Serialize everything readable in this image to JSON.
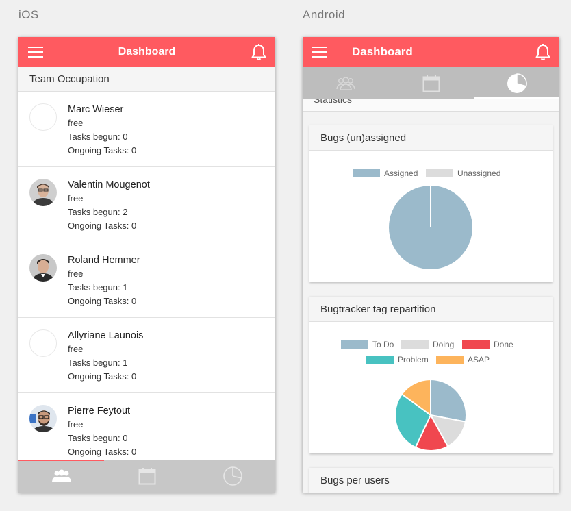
{
  "labels": {
    "ios": "iOS",
    "android": "Android"
  },
  "ios": {
    "appbar": {
      "title": "Dashboard"
    },
    "section_title": "Team Occupation",
    "members": [
      {
        "name": "Marc Wieser",
        "status": "free",
        "tasks_begun": "Tasks begun: 0",
        "ongoing": "Ongoing Tasks: 0",
        "avatar": "empty"
      },
      {
        "name": "Valentin Mougenot",
        "status": "free",
        "tasks_begun": "Tasks begun: 2",
        "ongoing": "Ongoing Tasks: 0",
        "avatar": "photo"
      },
      {
        "name": "Roland Hemmer",
        "status": "free",
        "tasks_begun": "Tasks begun: 1",
        "ongoing": "Ongoing Tasks: 0",
        "avatar": "photo"
      },
      {
        "name": "Allyriane Launois",
        "status": "free",
        "tasks_begun": "Tasks begun: 1",
        "ongoing": "Ongoing Tasks: 0",
        "avatar": "empty"
      },
      {
        "name": "Pierre Feytout",
        "status": "free",
        "tasks_begun": "Tasks begun: 0",
        "ongoing": "Ongoing Tasks: 0",
        "avatar": "photo"
      }
    ],
    "tabs": [
      {
        "icon": "team-icon",
        "active": true
      },
      {
        "icon": "calendar-icon",
        "active": false
      },
      {
        "icon": "pie-chart-icon",
        "active": false
      }
    ]
  },
  "android": {
    "appbar": {
      "title": "Dashboard"
    },
    "tabs": [
      {
        "icon": "team-icon",
        "active": false
      },
      {
        "icon": "calendar-icon",
        "active": false
      },
      {
        "icon": "pie-chart-icon",
        "active": true
      }
    ],
    "section_title": "Statistics",
    "cards": {
      "bugs_assigned": {
        "title": "Bugs (un)assigned"
      },
      "tag_repartition": {
        "title": "Bugtracker tag repartition"
      },
      "bugs_per_users": {
        "title": "Bugs per users"
      }
    }
  },
  "colors": {
    "accent": "#ff5a60",
    "todo": "#9bbacb",
    "doing": "#dcdcdc",
    "done": "#f0474f",
    "problem": "#48c2c1",
    "asap": "#fdb45c"
  },
  "chart_data": [
    {
      "type": "pie",
      "title": "Bugs (un)assigned",
      "categories": [
        "Assigned",
        "Unassigned"
      ],
      "values": [
        100,
        0
      ],
      "colors": [
        "#9bbacb",
        "#dcdcdc"
      ],
      "legend": "top"
    },
    {
      "type": "pie",
      "title": "Bugtracker tag repartition",
      "categories": [
        "To Do",
        "Doing",
        "Done",
        "Problem",
        "ASAP"
      ],
      "values": [
        28,
        14,
        15,
        28,
        15
      ],
      "colors": [
        "#9bbacb",
        "#dcdcdc",
        "#f0474f",
        "#48c2c1",
        "#fdb45c"
      ],
      "legend": "top"
    }
  ]
}
